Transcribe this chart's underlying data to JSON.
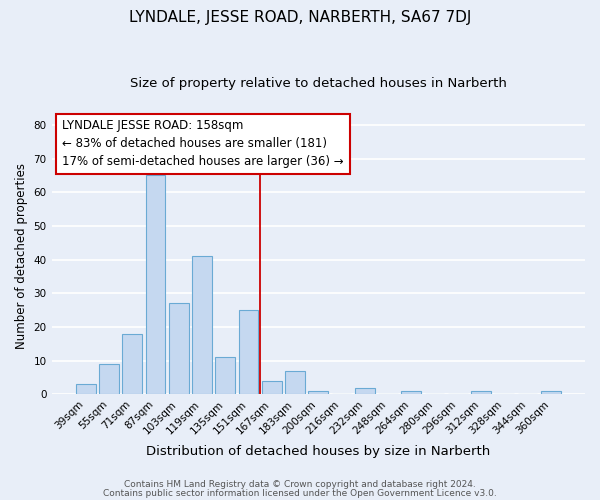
{
  "title": "LYNDALE, JESSE ROAD, NARBERTH, SA67 7DJ",
  "subtitle": "Size of property relative to detached houses in Narberth",
  "xlabel": "Distribution of detached houses by size in Narberth",
  "ylabel": "Number of detached properties",
  "footer_line1": "Contains HM Land Registry data © Crown copyright and database right 2024.",
  "footer_line2": "Contains public sector information licensed under the Open Government Licence v3.0.",
  "bar_labels": [
    "39sqm",
    "55sqm",
    "71sqm",
    "87sqm",
    "103sqm",
    "119sqm",
    "135sqm",
    "151sqm",
    "167sqm",
    "183sqm",
    "200sqm",
    "216sqm",
    "232sqm",
    "248sqm",
    "264sqm",
    "280sqm",
    "296sqm",
    "312sqm",
    "328sqm",
    "344sqm",
    "360sqm"
  ],
  "bar_values": [
    3,
    9,
    18,
    65,
    27,
    41,
    11,
    25,
    4,
    7,
    1,
    0,
    2,
    0,
    1,
    0,
    0,
    1,
    0,
    0,
    1
  ],
  "bar_color": "#c5d8f0",
  "bar_edgecolor": "#6aaad4",
  "vline_x": 7.5,
  "vline_color": "#cc0000",
  "annotation_title": "LYNDALE JESSE ROAD: 158sqm",
  "annotation_line1": "← 83% of detached houses are smaller (181)",
  "annotation_line2": "17% of semi-detached houses are larger (36) →",
  "annotation_box_edgecolor": "#cc0000",
  "annotation_box_facecolor": "#ffffff",
  "ylim": [
    0,
    82
  ],
  "yticks": [
    0,
    10,
    20,
    30,
    40,
    50,
    60,
    70,
    80
  ],
  "background_color": "#e8eef8",
  "plot_bg_color": "#e8eef8",
  "grid_color": "#ffffff",
  "title_fontsize": 11,
  "subtitle_fontsize": 9.5,
  "xlabel_fontsize": 9.5,
  "ylabel_fontsize": 8.5,
  "tick_fontsize": 7.5,
  "annotation_fontsize": 8.5,
  "footer_fontsize": 6.5
}
